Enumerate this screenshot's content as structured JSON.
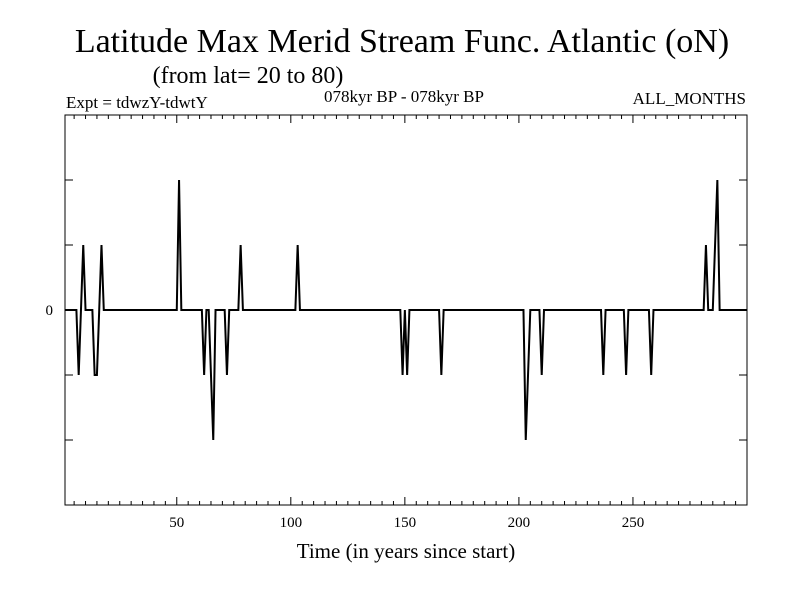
{
  "header": {
    "title": "Latitude Max Merid Stream Func. Atlantic (oN)",
    "subtitle": "(from lat= 20 to 80)",
    "expt": "Expt = tdwzY-tdwtY",
    "period": "078kyr BP - 078kyr BP",
    "months": "ALL_MONTHS"
  },
  "chart_data": {
    "type": "line",
    "title": "Latitude Max Merid Stream Func. Atlantic (oN)",
    "subtitle": "(from lat= 20 to 80)",
    "xlabel": "Time (in years since start)",
    "ylabel": "",
    "xlim": [
      1,
      300
    ],
    "ylim": [
      -3,
      3
    ],
    "xticks": [
      50,
      100,
      150,
      200,
      250
    ],
    "ytick_labels": [
      {
        "value": 0,
        "label": "0"
      }
    ],
    "series": [
      {
        "name": "tdwzY-tdwtY",
        "x": [
          1,
          6,
          7,
          8,
          9,
          10,
          11,
          13,
          14,
          15,
          16,
          17,
          18,
          50,
          51,
          52,
          61,
          62,
          63,
          64,
          65,
          66,
          67,
          71,
          72,
          73,
          74,
          77,
          78,
          79,
          102,
          103,
          104,
          148,
          149,
          150,
          151,
          152,
          153,
          165,
          166,
          167,
          202,
          203,
          204,
          205,
          206,
          209,
          210,
          211,
          236,
          237,
          238,
          246,
          247,
          248,
          257,
          258,
          259,
          281,
          282,
          283,
          284,
          285,
          286,
          287,
          288,
          300
        ],
        "y": [
          0,
          0,
          -1,
          0,
          1,
          0,
          0,
          0,
          -1,
          -1,
          0,
          1,
          0,
          0,
          2,
          0,
          0,
          -1,
          0,
          0,
          -1,
          -2,
          0,
          0,
          -1,
          0,
          0,
          0,
          1,
          0,
          0,
          1,
          0,
          0,
          -1,
          0,
          -1,
          0,
          0,
          0,
          -1,
          0,
          0,
          -2,
          -1,
          0,
          0,
          0,
          -1,
          0,
          0,
          -1,
          0,
          0,
          -1,
          0,
          0,
          -1,
          0,
          0,
          1,
          0,
          0,
          0,
          1,
          2,
          0,
          0
        ]
      }
    ]
  }
}
